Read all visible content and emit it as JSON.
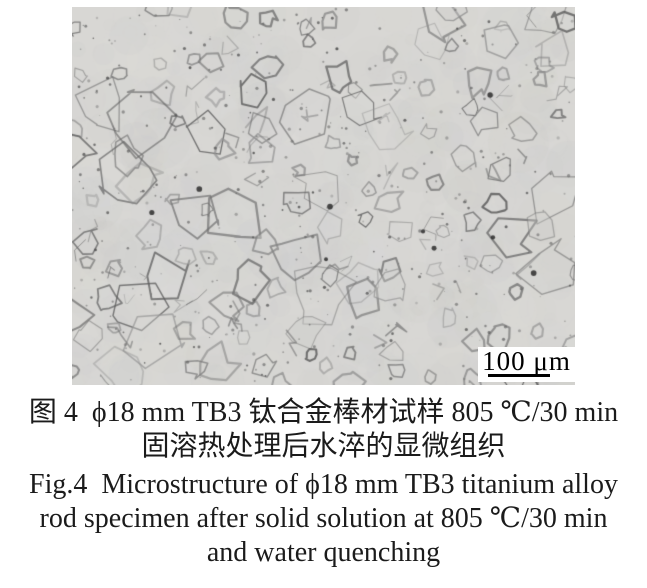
{
  "figure": {
    "scale_bar": {
      "label": "100 μm"
    },
    "caption_zh": {
      "line1": "图 4  ϕ18 mm TB3 钛合金棒材试样 805 ℃/30 min",
      "line2": "固溶热处理后水淬的显微组织"
    },
    "caption_en": {
      "line1": "Fig.4  Microstructure of ϕ18 mm TB3 titanium alloy",
      "line2": "rod specimen after solid solution at 805 ℃/30 min",
      "line3": "and water quenching"
    },
    "colors": {
      "micrograph_background": "#d8d7d4",
      "grain_boundary": "#787878",
      "caption_text": "#1b1b1b"
    }
  }
}
